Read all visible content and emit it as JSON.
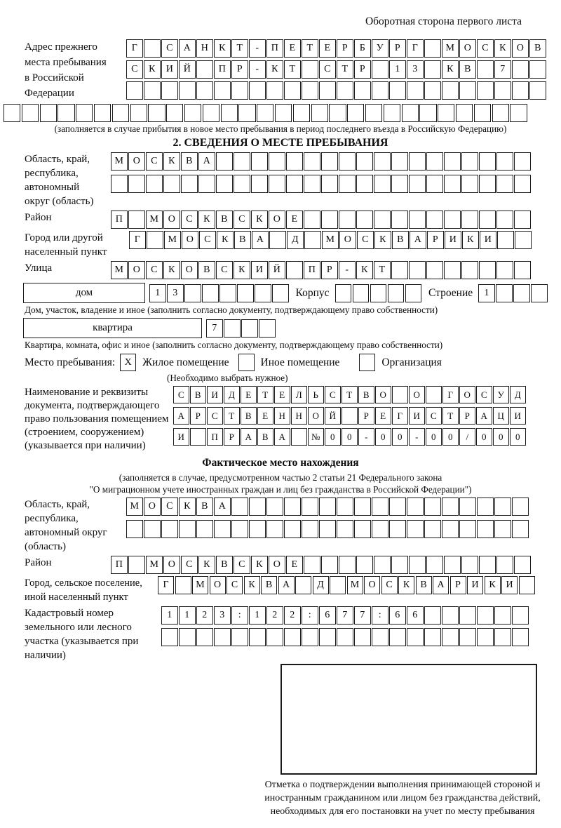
{
  "header": {
    "back_note": "Оборотная сторона первого листа"
  },
  "prev_address": {
    "label": "Адрес прежнего места пребывания в Российской Федерации",
    "rows": [
      {
        "t": "Г САНКТ-ПЕТЕРБУРГ МОСКОВ",
        "n": 24
      },
      {
        "t": "СКИЙ ПР-КТ СТР 13 КВ 7",
        "n": 24
      },
      {
        "t": "",
        "n": 24
      }
    ],
    "overflow_row": {
      "t": "",
      "n": 29
    },
    "note": "(заполняется в случае прибытия в новое место пребывания в период последнего въезда в Российскую Федерацию)"
  },
  "section2": {
    "title": "2. СВЕДЕНИЯ О МЕСТЕ ПРЕБЫВАНИЯ",
    "region": {
      "label": "Область, край, республика, автономный округ (область)",
      "rows": [
        {
          "t": "МОСКВА",
          "n": 24
        },
        {
          "t": "",
          "n": 24
        }
      ]
    },
    "district": {
      "label": "Район",
      "row": {
        "t": "П МОСКВСКОЕ",
        "n": 24
      }
    },
    "city": {
      "label": "Город или другой населенный пункт",
      "row": {
        "t": "Г МОСКВА Д МОСКВАРИКИ",
        "n": 23
      }
    },
    "street": {
      "label": "Улица",
      "row": {
        "t": "МОСКОВСКИЙ ПР-КТ",
        "n": 24
      }
    },
    "house_row": {
      "house_label": "дом",
      "house_cells": {
        "t": "13",
        "n": 8
      },
      "korpus_label": "Корпус",
      "korpus_cells": {
        "t": "",
        "n": 5
      },
      "stroenie_label": "Строение",
      "stroenie_cells": {
        "t": "1",
        "n": 4
      },
      "note": "Дом, участок, владение и иное (заполнить согласно документу, подтверждающему право собственности)"
    },
    "apartment_row": {
      "apartment_label": "квартира",
      "apartment_cells": {
        "t": "7",
        "n": 4
      },
      "note": "Квартира, комната, офис и иное (заполнить согласно документу, подтверждающему право собственности)"
    },
    "stay_type": {
      "label": "Место пребывания:",
      "options": [
        {
          "label": "Жилое помещение",
          "mark": "X"
        },
        {
          "label": "Иное помещение",
          "mark": ""
        },
        {
          "label": "Организация",
          "mark": ""
        }
      ],
      "note": "(Необходимо выбрать нужное)"
    },
    "document": {
      "label": "Наименование и реквизиты документа, подтверждающего право пользования помещением (строением, сооружением) (указывается при наличии)",
      "rows": [
        {
          "t": "СВИДЕТЕЛЬСТВО О ГОСУД",
          "n": 21
        },
        {
          "t": "АРСТВЕННОЙ РЕГИСТРАЦИ",
          "n": 21
        },
        {
          "t": "И ПРАВА №00-00-00/000",
          "n": 21
        }
      ]
    }
  },
  "actual_location": {
    "title": "Фактическое место нахождения",
    "notes": [
      "(заполняется в случае, предусмотренном частью 2 статьи 21 Федерального закона",
      "\"О миграционном учете иностранных граждан и лиц без гражданства в Российской Федерации\")"
    ],
    "region": {
      "label": "Область, край, республика, автономный округ (область)",
      "rows": [
        {
          "t": "МОСКВА",
          "n": 23
        },
        {
          "t": "",
          "n": 23
        }
      ]
    },
    "district": {
      "label": "Район",
      "row": {
        "t": "П МОСКВСКОЕ",
        "n": 24
      }
    },
    "city": {
      "label": "Город, сельское поселение, иной населенный пункт",
      "row": {
        "t": "Г МОСКВА Д МОСКВАРИКИ",
        "n": 22
      }
    },
    "cadastral": {
      "label": "Кадастровый номер земельного или лесного участка (указывается при наличии)",
      "rows": [
        {
          "t": "1123:122:677:66",
          "n": 21
        },
        {
          "t": "",
          "n": 21
        }
      ]
    },
    "stamp_caption": "Отметка о подтверждении выполнения принимающей стороной и иностранным гражданином или лицом без гражданства действий, необходимых для его постановки на учет по месту пребывания"
  }
}
